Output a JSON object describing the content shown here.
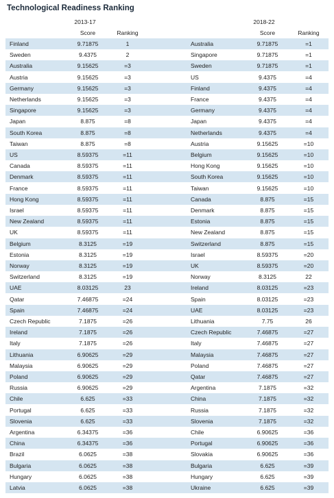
{
  "title": "Technological Readiness Ranking",
  "left": {
    "period": "2013-17",
    "columns": [
      "Score",
      "Ranking"
    ],
    "rows": [
      [
        "Finland",
        "9.71875",
        "1"
      ],
      [
        "Sweden",
        "9.4375",
        "2"
      ],
      [
        "Australia",
        "9.15625",
        "=3"
      ],
      [
        "Austria",
        "9.15625",
        "=3"
      ],
      [
        "Germany",
        "9.15625",
        "=3"
      ],
      [
        "Netherlands",
        "9.15625",
        "=3"
      ],
      [
        "Singapore",
        "9.15625",
        "=3"
      ],
      [
        "Japan",
        "8.875",
        "=8"
      ],
      [
        "South Korea",
        "8.875",
        "=8"
      ],
      [
        "Taiwan",
        "8.875",
        "=8"
      ],
      [
        "US",
        "8.59375",
        "=11"
      ],
      [
        "Canada",
        "8.59375",
        "=11"
      ],
      [
        "Denmark",
        "8.59375",
        "=11"
      ],
      [
        "France",
        "8.59375",
        "=11"
      ],
      [
        "Hong Kong",
        "8.59375",
        "=11"
      ],
      [
        "Israel",
        "8.59375",
        "=11"
      ],
      [
        "New Zealand",
        "8.59375",
        "=11"
      ],
      [
        "UK",
        "8.59375",
        "=11"
      ],
      [
        "Belgium",
        "8.3125",
        "=19"
      ],
      [
        "Estonia",
        "8.3125",
        "=19"
      ],
      [
        "Norway",
        "8.3125",
        "=19"
      ],
      [
        "Switzerland",
        "8.3125",
        "=19"
      ],
      [
        "UAE",
        "8.03125",
        "23"
      ],
      [
        "Qatar",
        "7.46875",
        "=24"
      ],
      [
        "Spain",
        "7.46875",
        "=24"
      ],
      [
        "Czech Republic",
        "7.1875",
        "=26"
      ],
      [
        "Ireland",
        "7.1875",
        "=26"
      ],
      [
        "Italy",
        "7.1875",
        "=26"
      ],
      [
        "Lithuania",
        "6.90625",
        "=29"
      ],
      [
        "Malaysia",
        "6.90625",
        "=29"
      ],
      [
        "Poland",
        "6.90625",
        "=29"
      ],
      [
        "Russia",
        "6.90625",
        "=29"
      ],
      [
        "Chile",
        "6.625",
        "=33"
      ],
      [
        "Portugal",
        "6.625",
        "=33"
      ],
      [
        "Slovenia",
        "6.625",
        "=33"
      ],
      [
        "Argentina",
        "6.34375",
        "=36"
      ],
      [
        "China",
        "6.34375",
        "=36"
      ],
      [
        "Brazil",
        "6.0625",
        "=38"
      ],
      [
        "Bulgaria",
        "6.0625",
        "=38"
      ],
      [
        "Hungary",
        "6.0625",
        "=38"
      ],
      [
        "Latvia",
        "6.0625",
        "=38"
      ]
    ]
  },
  "right": {
    "period": "2018-22",
    "columns": [
      "Score",
      "Ranking"
    ],
    "rows": [
      [
        "Australia",
        "9.71875",
        "=1"
      ],
      [
        "Singapore",
        "9.71875",
        "=1"
      ],
      [
        "Sweden",
        "9.71875",
        "=1"
      ],
      [
        "US",
        "9.4375",
        "=4"
      ],
      [
        "Finland",
        "9.4375",
        "=4"
      ],
      [
        "France",
        "9.4375",
        "=4"
      ],
      [
        "Germany",
        "9.4375",
        "=4"
      ],
      [
        "Japan",
        "9.4375",
        "=4"
      ],
      [
        "Netherlands",
        "9.4375",
        "=4"
      ],
      [
        "Austria",
        "9.15625",
        "=10"
      ],
      [
        "Belgium",
        "9.15625",
        "=10"
      ],
      [
        "Hong Kong",
        "9.15625",
        "=10"
      ],
      [
        "South Korea",
        "9.15625",
        "=10"
      ],
      [
        "Taiwan",
        "9.15625",
        "=10"
      ],
      [
        "Canada",
        "8.875",
        "=15"
      ],
      [
        "Denmark",
        "8.875",
        "=15"
      ],
      [
        "Estonia",
        "8.875",
        "=15"
      ],
      [
        "New Zealand",
        "8.875",
        "=15"
      ],
      [
        "Switzerland",
        "8.875",
        "=15"
      ],
      [
        "Israel",
        "8.59375",
        "=20"
      ],
      [
        "UK",
        "8.59375",
        "=20"
      ],
      [
        "Norway",
        "8.3125",
        "22"
      ],
      [
        "Ireland",
        "8.03125",
        "=23"
      ],
      [
        "Spain",
        "8.03125",
        "=23"
      ],
      [
        "UAE",
        "8.03125",
        "=23"
      ],
      [
        "Lithuania",
        "7.75",
        "26"
      ],
      [
        "Czech Republic",
        "7.46875",
        "=27"
      ],
      [
        "Italy",
        "7.46875",
        "=27"
      ],
      [
        "Malaysia",
        "7.46875",
        "=27"
      ],
      [
        "Poland",
        "7.46875",
        "=27"
      ],
      [
        "Qatar",
        "7.46875",
        "=27"
      ],
      [
        "Argentina",
        "7.1875",
        "=32"
      ],
      [
        "China",
        "7.1875",
        "=32"
      ],
      [
        "Russia",
        "7.1875",
        "=32"
      ],
      [
        "Slovenia",
        "7.1875",
        "=32"
      ],
      [
        "Chile",
        "6.90625",
        "=36"
      ],
      [
        "Portugal",
        "6.90625",
        "=36"
      ],
      [
        "Slovakia",
        "6.90625",
        "=36"
      ],
      [
        "Bulgaria",
        "6.625",
        "=39"
      ],
      [
        "Hungary",
        "6.625",
        "=39"
      ],
      [
        "Ukraine",
        "6.625",
        "=39"
      ]
    ]
  }
}
